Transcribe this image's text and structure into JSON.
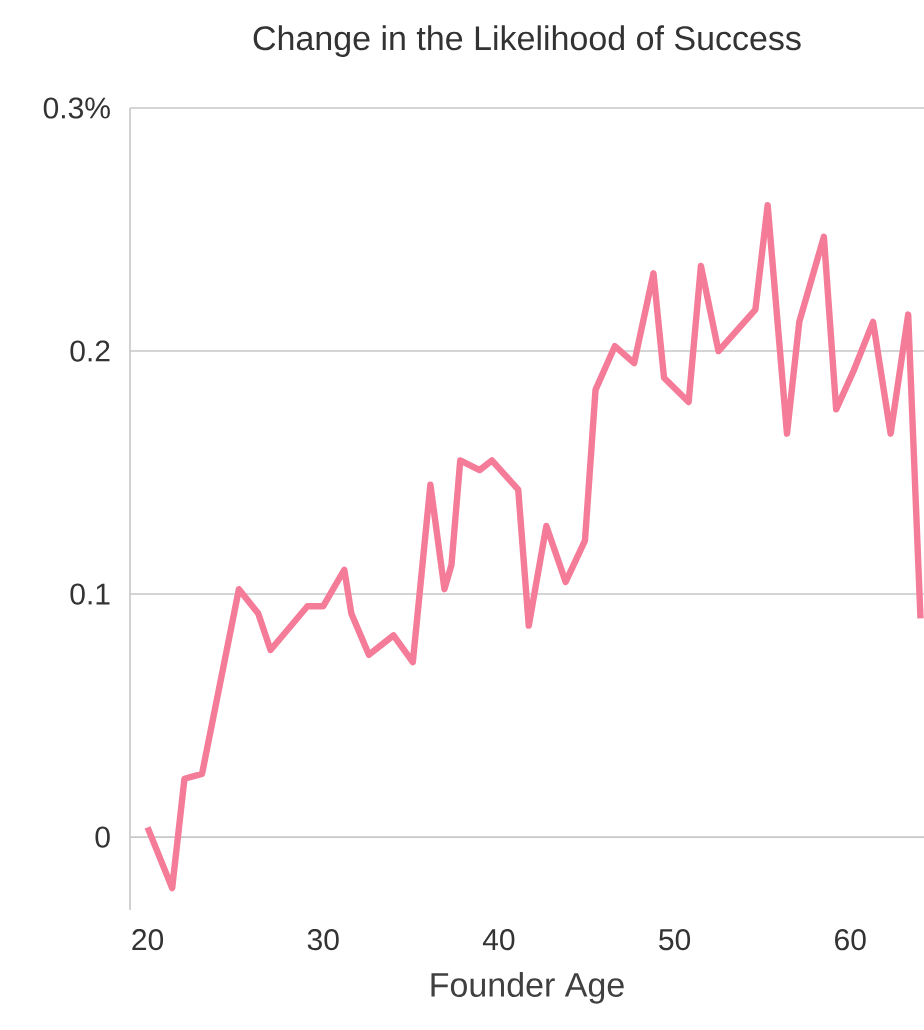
{
  "chart_data": {
    "type": "line",
    "title": "Change in the Likelihood of Success",
    "xlabel": "Founder Age",
    "x": [
      20.0,
      21.4,
      22.1,
      23.1,
      25.2,
      26.3,
      27.0,
      29.1,
      30.0,
      31.2,
      31.6,
      32.6,
      34.0,
      35.1,
      36.1,
      36.9,
      37.3,
      37.8,
      38.9,
      39.6,
      41.1,
      41.7,
      42.7,
      43.8,
      44.9,
      45.5,
      46.6,
      47.7,
      48.8,
      49.4,
      50.8,
      51.5,
      52.5,
      54.6,
      55.3,
      56.4,
      57.1,
      58.5,
      59.2,
      60.2,
      61.3,
      62.3,
      63.3,
      64.0
    ],
    "values": [
      0.004,
      -0.021,
      0.024,
      0.026,
      0.102,
      0.092,
      0.077,
      0.095,
      0.095,
      0.11,
      0.092,
      0.075,
      0.083,
      0.072,
      0.145,
      0.102,
      0.112,
      0.155,
      0.151,
      0.155,
      0.143,
      0.087,
      0.128,
      0.105,
      0.122,
      0.184,
      0.202,
      0.195,
      0.232,
      0.189,
      0.179,
      0.235,
      0.2,
      0.217,
      0.26,
      0.166,
      0.212,
      0.247,
      0.176,
      0.192,
      0.212,
      0.166,
      0.215,
      0.09
    ],
    "color": "#f47c98",
    "xlim": [
      19.0,
      64.2
    ],
    "ylim": [
      -0.03,
      0.3
    ],
    "xticks": [
      20,
      30,
      40,
      50,
      60
    ],
    "yticks": [
      0,
      0.1,
      0.2,
      {
        "value": 0.3,
        "label": "0.3%"
      }
    ],
    "grid": "y"
  }
}
